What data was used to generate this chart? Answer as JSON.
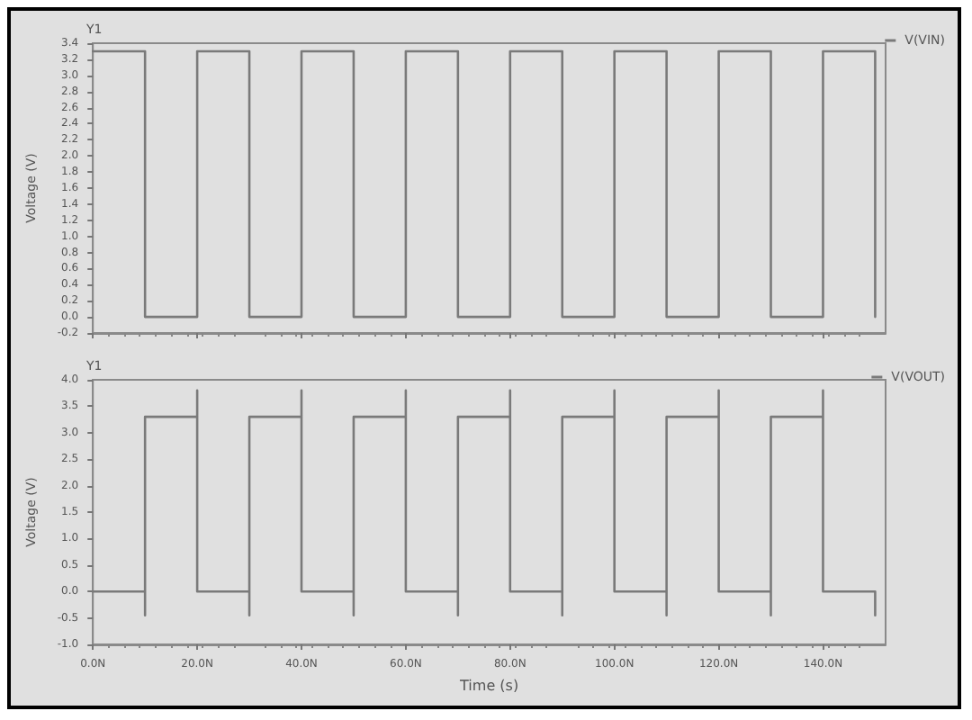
{
  "chart_data": [
    {
      "type": "line",
      "ylabel": "Voltage (V)",
      "annotations": [
        "Y1"
      ],
      "legend": "top right",
      "grid": false,
      "marker": "none",
      "line_style": "solid",
      "tick_labels": "y",
      "xlim": [
        0,
        152
      ],
      "xticks": [
        0,
        20,
        40,
        60,
        80,
        100,
        120,
        140
      ],
      "ylim": [
        -0.2,
        3.4
      ],
      "yticks": [
        {
          "value": -0.2,
          "label": "-0.2"
        },
        {
          "value": 0,
          "label": "0.0"
        },
        {
          "value": 0.2,
          "label": "0.2"
        },
        {
          "value": 0.4,
          "label": "0.4"
        },
        {
          "value": 0.6,
          "label": "0.6"
        },
        {
          "value": 0.8,
          "label": "0.8"
        },
        {
          "value": 1,
          "label": "1.0"
        },
        {
          "value": 1.2,
          "label": "1.2"
        },
        {
          "value": 1.4,
          "label": "1.4"
        },
        {
          "value": 1.6,
          "label": "1.6"
        },
        {
          "value": 1.8,
          "label": "1.8"
        },
        {
          "value": 2,
          "label": "2.0"
        },
        {
          "value": 2.2,
          "label": "2.2"
        },
        {
          "value": 2.4,
          "label": "2.4"
        },
        {
          "value": 2.6,
          "label": "2.6"
        },
        {
          "value": 2.8,
          "label": "2.8"
        },
        {
          "value": 3,
          "label": "3.0"
        },
        {
          "value": 3.2,
          "label": "3.2"
        },
        {
          "value": 3.4,
          "label": "3.4"
        }
      ],
      "series": [
        {
          "name": "V(VIN)",
          "color": "#7a7a7a",
          "x": [
            0,
            10,
            10,
            20,
            20,
            30,
            30,
            40,
            40,
            50,
            50,
            60,
            60,
            70,
            70,
            80,
            80,
            90,
            90,
            100,
            100,
            110,
            110,
            120,
            120,
            130,
            130,
            140,
            140,
            150,
            150
          ],
          "values": [
            3.3,
            3.3,
            0,
            0,
            3.3,
            3.3,
            0,
            0,
            3.3,
            3.3,
            0,
            0,
            3.3,
            3.3,
            0,
            0,
            3.3,
            3.3,
            0,
            0,
            3.3,
            3.3,
            0,
            0,
            3.3,
            3.3,
            0,
            0,
            3.3,
            3.3,
            0
          ]
        }
      ]
    },
    {
      "type": "line",
      "xlabel": "Time (s)",
      "ylabel": "Voltage (V)",
      "annotations": [
        "Y1"
      ],
      "legend": "top right",
      "grid": false,
      "marker": "none",
      "line_style": "solid",
      "xlim": [
        0,
        152
      ],
      "xticks": [
        {
          "value": 0,
          "label": "0.0N"
        },
        {
          "value": 20,
          "label": "20.0N"
        },
        {
          "value": 40,
          "label": "40.0N"
        },
        {
          "value": 60,
          "label": "60.0N"
        },
        {
          "value": 80,
          "label": "80.0N"
        },
        {
          "value": 100,
          "label": "100.0N"
        },
        {
          "value": 120,
          "label": "120.0N"
        },
        {
          "value": 140,
          "label": "140.0N"
        }
      ],
      "ylim": [
        -1,
        4
      ],
      "yticks": [
        {
          "value": -1,
          "label": "-1.0"
        },
        {
          "value": -0.5,
          "label": "-0.5"
        },
        {
          "value": 0,
          "label": "0.0"
        },
        {
          "value": 0.5,
          "label": "0.5"
        },
        {
          "value": 1,
          "label": "1.0"
        },
        {
          "value": 1.5,
          "label": "1.5"
        },
        {
          "value": 2,
          "label": "2.0"
        },
        {
          "value": 2.5,
          "label": "2.5"
        },
        {
          "value": 3,
          "label": "3.0"
        },
        {
          "value": 3.5,
          "label": "3.5"
        },
        {
          "value": 4,
          "label": "4.0"
        }
      ],
      "series": [
        {
          "name": "V(VOUT)",
          "color": "#7a7a7a",
          "x": [
            0,
            10,
            10,
            10,
            20,
            20,
            20,
            30,
            30,
            30,
            40,
            40,
            40,
            50,
            50,
            50,
            60,
            60,
            60,
            70,
            70,
            70,
            80,
            80,
            80,
            90,
            90,
            90,
            100,
            100,
            100,
            110,
            110,
            110,
            120,
            120,
            120,
            130,
            130,
            130,
            140,
            140,
            140,
            150,
            150
          ],
          "values": [
            0,
            0,
            -0.45,
            3.3,
            3.3,
            3.8,
            0,
            0,
            -0.45,
            3.3,
            3.3,
            3.8,
            0,
            0,
            -0.45,
            3.3,
            3.3,
            3.8,
            0,
            0,
            -0.45,
            3.3,
            3.3,
            3.8,
            0,
            0,
            -0.45,
            3.3,
            3.3,
            3.8,
            0,
            0,
            -0.45,
            3.3,
            3.3,
            3.8,
            0,
            0,
            -0.45,
            3.3,
            3.3,
            3.8,
            0,
            0,
            -0.45
          ]
        }
      ]
    }
  ]
}
